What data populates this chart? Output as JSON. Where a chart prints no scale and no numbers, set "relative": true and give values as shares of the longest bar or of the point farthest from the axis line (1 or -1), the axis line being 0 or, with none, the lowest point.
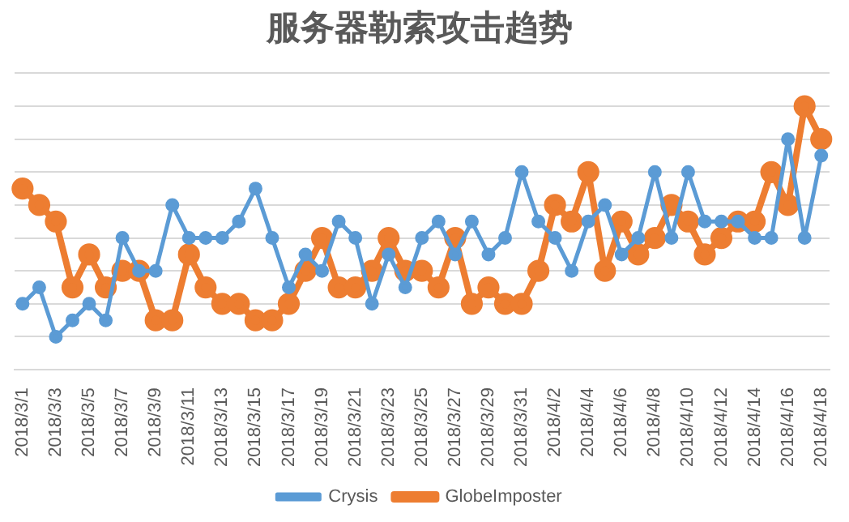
{
  "chart_data": {
    "type": "line",
    "title": "服务器勒索攻击趋势",
    "categories": [
      "2018/3/1",
      null,
      "2018/3/3",
      null,
      "2018/3/5",
      null,
      "2018/3/7",
      null,
      "2018/3/9",
      null,
      "2018/3/11",
      null,
      "2018/3/13",
      null,
      "2018/3/15",
      null,
      "2018/3/17",
      null,
      "2018/3/19",
      null,
      "2018/3/21",
      null,
      "2018/3/23",
      null,
      "2018/3/25",
      null,
      "2018/3/27",
      null,
      "2018/3/29",
      null,
      "2018/3/31",
      null,
      "2018/4/2",
      null,
      "2018/4/4",
      null,
      "2018/4/6",
      null,
      "2018/4/8",
      null,
      "2018/4/10",
      null,
      "2018/4/12",
      null,
      "2018/4/14",
      null,
      "2018/4/16",
      null,
      "2018/4/18"
    ],
    "relative": true,
    "series": [
      {
        "name": "Crysis",
        "color": "#5b9bd5",
        "values": [
          0.25,
          0.3125,
          0.125,
          0.1875,
          0.25,
          0.1875,
          0.5,
          0.375,
          0.375,
          0.625,
          0.5,
          0.5,
          0.5,
          0.5625,
          0.6875,
          0.5,
          0.3125,
          0.4375,
          0.375,
          0.5625,
          0.5,
          0.25,
          0.4375,
          0.3125,
          0.5,
          0.5625,
          0.4375,
          0.5625,
          0.4375,
          0.5,
          0.75,
          0.5625,
          0.5,
          0.375,
          0.5625,
          0.625,
          0.4375,
          0.5,
          0.75,
          0.5,
          0.75,
          0.5625,
          0.5625,
          0.5625,
          0.5,
          0.5,
          0.875,
          0.5,
          0.8125
        ]
      },
      {
        "name": "GlobeImposter",
        "color": "#ed7d31",
        "values": [
          0.6875,
          0.625,
          0.5625,
          0.3125,
          0.4375,
          0.3125,
          0.375,
          0.375,
          0.1875,
          0.1875,
          0.4375,
          0.3125,
          0.25,
          0.25,
          0.1875,
          0.1875,
          0.25,
          0.375,
          0.5,
          0.3125,
          0.3125,
          0.375,
          0.5,
          0.375,
          0.375,
          0.3125,
          0.5,
          0.25,
          0.3125,
          0.25,
          0.25,
          0.375,
          0.625,
          0.5625,
          0.75,
          0.375,
          0.5625,
          0.4375,
          0.5,
          0.625,
          0.5625,
          0.4375,
          0.5,
          0.5625,
          0.5625,
          0.75,
          0.625,
          1,
          0.875
        ]
      }
    ],
    "grid": "y",
    "legend": "bottom",
    "marker": "circle",
    "tick_labels": "x"
  }
}
